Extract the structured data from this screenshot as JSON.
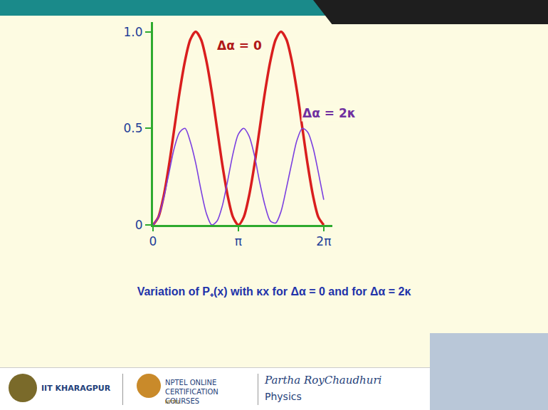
{
  "chart_data": {
    "type": "line",
    "x": [
      0,
      0.196,
      0.393,
      0.589,
      0.785,
      0.982,
      1.178,
      1.374,
      1.571,
      1.767,
      1.963,
      2.16,
      2.356,
      2.553,
      2.749,
      2.945,
      3.142,
      3.338,
      3.534,
      3.731,
      3.927,
      4.123,
      4.32,
      4.516,
      4.712,
      4.909,
      5.105,
      5.301,
      5.498,
      5.694,
      5.89,
      6.087,
      6.283
    ],
    "series": [
      {
        "name": "Δα = 0",
        "color": "#d91e1e",
        "values": [
          0,
          0.04,
          0.15,
          0.31,
          0.5,
          0.69,
          0.85,
          0.96,
          1,
          0.96,
          0.85,
          0.69,
          0.5,
          0.31,
          0.15,
          0.04,
          0,
          0.04,
          0.15,
          0.31,
          0.5,
          0.69,
          0.85,
          0.96,
          1,
          0.96,
          0.85,
          0.69,
          0.5,
          0.31,
          0.15,
          0.04,
          0
        ]
      },
      {
        "name": "Δα = 2κ",
        "color": "#7a3fe0",
        "values": [
          0,
          0.04,
          0.14,
          0.27,
          0.4,
          0.48,
          0.5,
          0.43,
          0.32,
          0.18,
          0.06,
          0.0,
          0.02,
          0.1,
          0.23,
          0.37,
          0.47,
          0.5,
          0.46,
          0.36,
          0.22,
          0.1,
          0.02,
          0.01,
          0.07,
          0.19,
          0.32,
          0.44,
          0.5,
          0.48,
          0.4,
          0.27,
          0.13
        ]
      }
    ],
    "xlim": [
      0,
      6.6
    ],
    "xticks": [
      0,
      {
        "value": 3.1416,
        "label": "π"
      },
      {
        "value": 6.2832,
        "label": "2π"
      }
    ],
    "ylim": [
      0,
      1.05
    ],
    "yticks": [
      0,
      0.5,
      {
        "value": 1,
        "label": "1.0"
      }
    ],
    "grid": false,
    "caption": "Variation of P₊(x) with κx for Δα = 0 and for Δα = 2κ",
    "footer": {
      "institute": "IIT KHARAGPUR",
      "course": "NPTEL ONLINE CERTIFICATION COURSES",
      "course_logo": "NPTEL",
      "lecturer": "Partha RoyChaudhuri",
      "subject": "Physics"
    }
  }
}
